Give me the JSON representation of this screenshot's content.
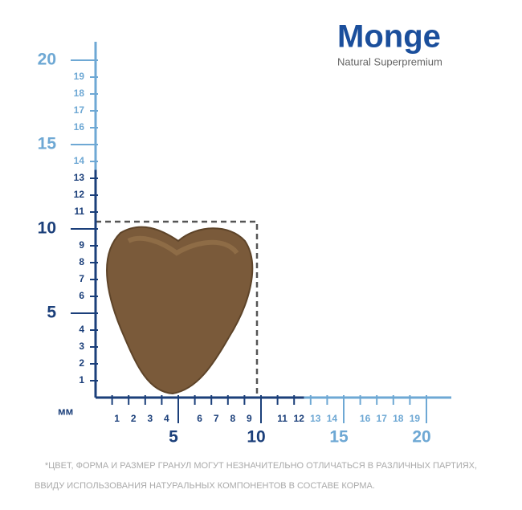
{
  "logo": {
    "brand": "Monge",
    "tagline": "Natural Superpremium"
  },
  "ruler": {
    "unit": "мм",
    "y_major": [
      5,
      10,
      15,
      20
    ],
    "y_minor": [
      1,
      2,
      3,
      4,
      6,
      7,
      8,
      9,
      11,
      12,
      13,
      14,
      16,
      17,
      18,
      19
    ],
    "x_major": [
      5,
      10,
      15,
      20
    ],
    "x_minor": [
      1,
      2,
      3,
      4,
      6,
      7,
      8,
      9,
      11,
      12,
      13,
      14,
      16,
      17,
      18,
      19
    ]
  },
  "note": [
    "*ЦВЕТ, ФОРМА И РАЗМЕР ГРАНУЛ МОГУТ НЕЗНАЧИТЕЛЬНО ОТЛИЧАТЬСЯ В РАЗЛИЧНЫХ ПАРТИЯХ,",
    "ВВИДУ ИСПОЛЬЗОВАНИЯ НАТУРАЛЬНЫХ КОМПОНЕНТОВ В СОСТАВЕ КОРМА."
  ]
}
